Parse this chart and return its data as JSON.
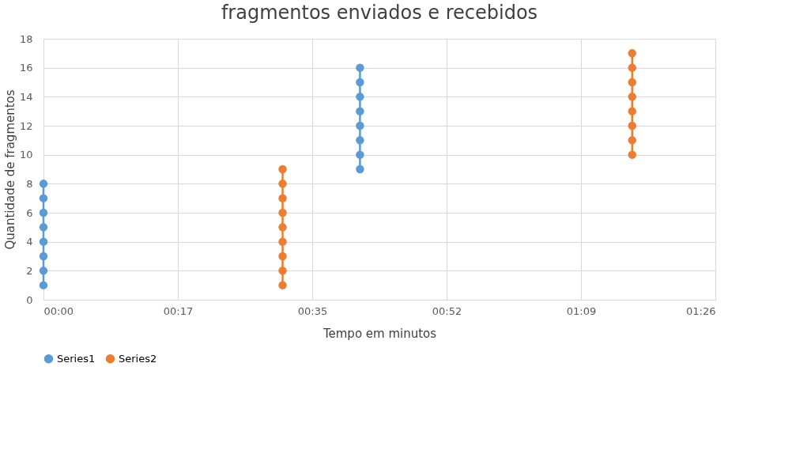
{
  "chart_data": {
    "type": "line",
    "title": "fragmentos enviados e recebidos",
    "xlabel": "Tempo em minutos",
    "ylabel": "Quantidade de fragmentos",
    "xlim": [
      0,
      86.4
    ],
    "xticks": [
      {
        "value": 0,
        "label": "00:00"
      },
      {
        "value": 17.28,
        "label": "00:17"
      },
      {
        "value": 34.56,
        "label": "00:35"
      },
      {
        "value": 51.84,
        "label": "00:52"
      },
      {
        "value": 69.12,
        "label": "01:09"
      },
      {
        "value": 86.4,
        "label": "01:26"
      }
    ],
    "ylim": [
      0,
      18
    ],
    "yticks": [
      0,
      2,
      4,
      6,
      8,
      10,
      12,
      14,
      16,
      18
    ],
    "grid": true,
    "legend": "bottom",
    "marker": "circle",
    "line_style": "solid",
    "series": [
      {
        "name": "Series1",
        "color": "#5b9bd5",
        "x": [
          0,
          0,
          0,
          0,
          0,
          0,
          0,
          0,
          null,
          40.7,
          40.7,
          40.7,
          40.7,
          40.7,
          40.7,
          40.7,
          40.7
        ],
        "values": [
          1,
          2,
          3,
          4,
          5,
          6,
          7,
          8,
          null,
          9,
          10,
          11,
          12,
          13,
          14,
          15,
          16
        ]
      },
      {
        "name": "Series2",
        "color": "#ed7d31",
        "x": [
          30.75,
          30.75,
          30.75,
          30.75,
          30.75,
          30.75,
          30.75,
          30.75,
          30.75,
          null,
          75.7,
          75.7,
          75.7,
          75.7,
          75.7,
          75.7,
          75.7,
          75.7
        ],
        "values": [
          1,
          2,
          3,
          4,
          5,
          6,
          7,
          8,
          9,
          null,
          10,
          11,
          12,
          13,
          14,
          15,
          16,
          17
        ]
      }
    ]
  }
}
